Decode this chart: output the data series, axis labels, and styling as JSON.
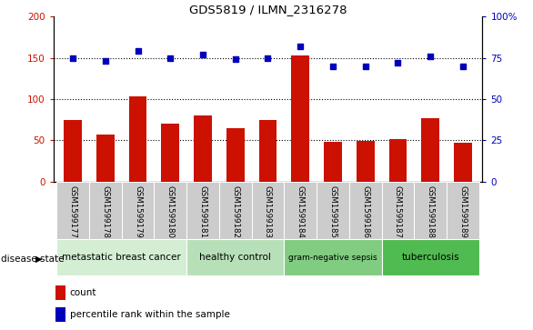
{
  "title": "GDS5819 / ILMN_2316278",
  "samples": [
    "GSM1599177",
    "GSM1599178",
    "GSM1599179",
    "GSM1599180",
    "GSM1599181",
    "GSM1599182",
    "GSM1599183",
    "GSM1599184",
    "GSM1599185",
    "GSM1599186",
    "GSM1599187",
    "GSM1599188",
    "GSM1599189"
  ],
  "counts": [
    75,
    57,
    103,
    70,
    80,
    65,
    74,
    153,
    48,
    49,
    51,
    77,
    47
  ],
  "percentiles": [
    75,
    73,
    79,
    75,
    77,
    74,
    75,
    82,
    70,
    70,
    72,
    76,
    70
  ],
  "ylim_left": [
    0,
    200
  ],
  "ylim_right": [
    0,
    100
  ],
  "yticks_left": [
    0,
    50,
    100,
    150,
    200
  ],
  "yticks_right": [
    0,
    25,
    50,
    75,
    100
  ],
  "ytick_labels_left": [
    "0",
    "50",
    "100",
    "150",
    "200"
  ],
  "ytick_labels_right": [
    "0",
    "25",
    "50",
    "75",
    "100%"
  ],
  "disease_groups": [
    {
      "label": "metastatic breast cancer",
      "start": 0,
      "end": 4,
      "color": "#d4eed4"
    },
    {
      "label": "healthy control",
      "start": 4,
      "end": 7,
      "color": "#b8e0b8"
    },
    {
      "label": "gram-negative sepsis",
      "start": 7,
      "end": 10,
      "color": "#80cc80"
    },
    {
      "label": "tuberculosis",
      "start": 10,
      "end": 13,
      "color": "#50bb50"
    }
  ],
  "bar_color": "#cc1100",
  "dot_color": "#0000bb",
  "tick_bg": "#cccccc",
  "legend_items": [
    "count",
    "percentile rank within the sample"
  ],
  "disease_state_label": "disease state"
}
